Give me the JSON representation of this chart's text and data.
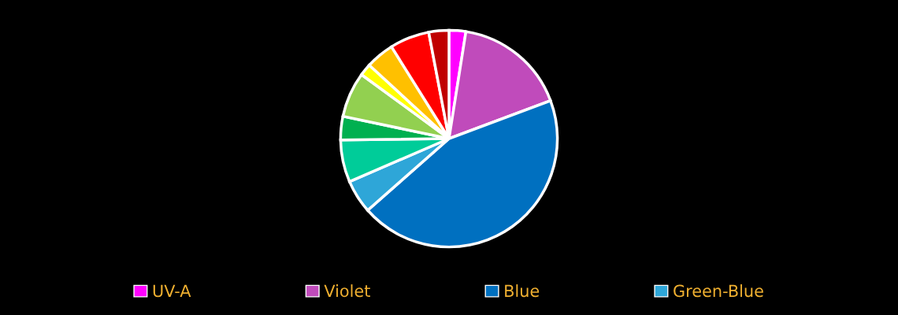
{
  "chart_data": {
    "type": "pie",
    "categories": [
      "UV-A",
      "Violet",
      "Blue",
      "Green-Blue",
      null,
      null,
      null,
      null,
      null,
      null,
      null
    ],
    "values": [
      2.5,
      16.8,
      44.2,
      5.0,
      6.3,
      3.5,
      6.75,
      1.8,
      4.25,
      5.9,
      3.0
    ],
    "colors": [
      "#ff00ff",
      "#c04bbb",
      "#0070c0",
      "#2ea6d8",
      "#00cc99",
      "#00b050",
      "#92d050",
      "#ffff00",
      "#ffc000",
      "#ff0000",
      "#c00000"
    ],
    "legend": "bottom"
  }
}
